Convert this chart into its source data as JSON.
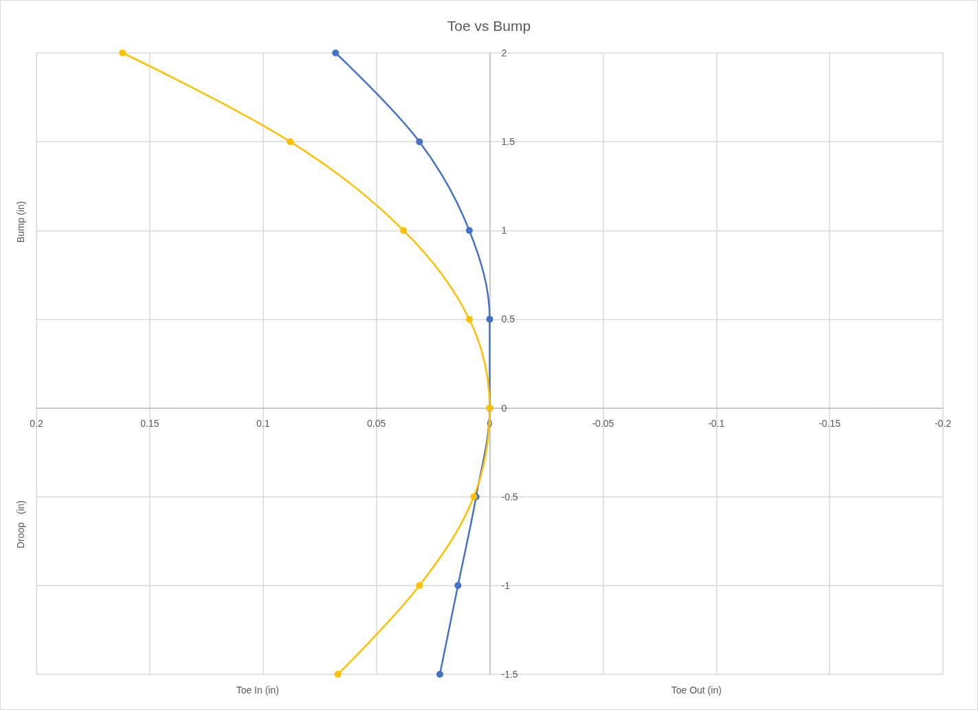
{
  "chart_data": {
    "type": "line",
    "title": "Toe vs Bump",
    "xlabel": "Toe In (in)",
    "ylabel": "Bump (in)",
    "annotations": [
      "Toe Out (in)",
      "Droop   (in)"
    ],
    "series": [
      {
        "color": "#4472c4",
        "x": [
          0.068,
          0.031,
          0.009,
          0,
          0,
          0.006,
          0.014,
          0.022
        ],
        "values": [
          2,
          1.5,
          1,
          0.5,
          0,
          -0.5,
          -1,
          -1.5
        ]
      },
      {
        "color": "#ffc000",
        "x": [
          0.162,
          0.088,
          0.038,
          0.009,
          0,
          0.007,
          0.031,
          0.067
        ],
        "values": [
          2,
          1.5,
          1,
          0.5,
          0,
          -0.5,
          -1,
          -1.5
        ]
      }
    ],
    "xlim": [
      0.2,
      -0.2
    ],
    "xticks": [
      0.2,
      0.15,
      0.1,
      0.05,
      0,
      -0.05,
      -0.1,
      -0.15,
      -0.2
    ],
    "ylim": [
      -1.5,
      2
    ],
    "yticks": [
      -1.5,
      -1,
      -0.5,
      0,
      0.5,
      1,
      1.5,
      2
    ],
    "grid": true,
    "marker": "circle",
    "line_style": "solid"
  }
}
